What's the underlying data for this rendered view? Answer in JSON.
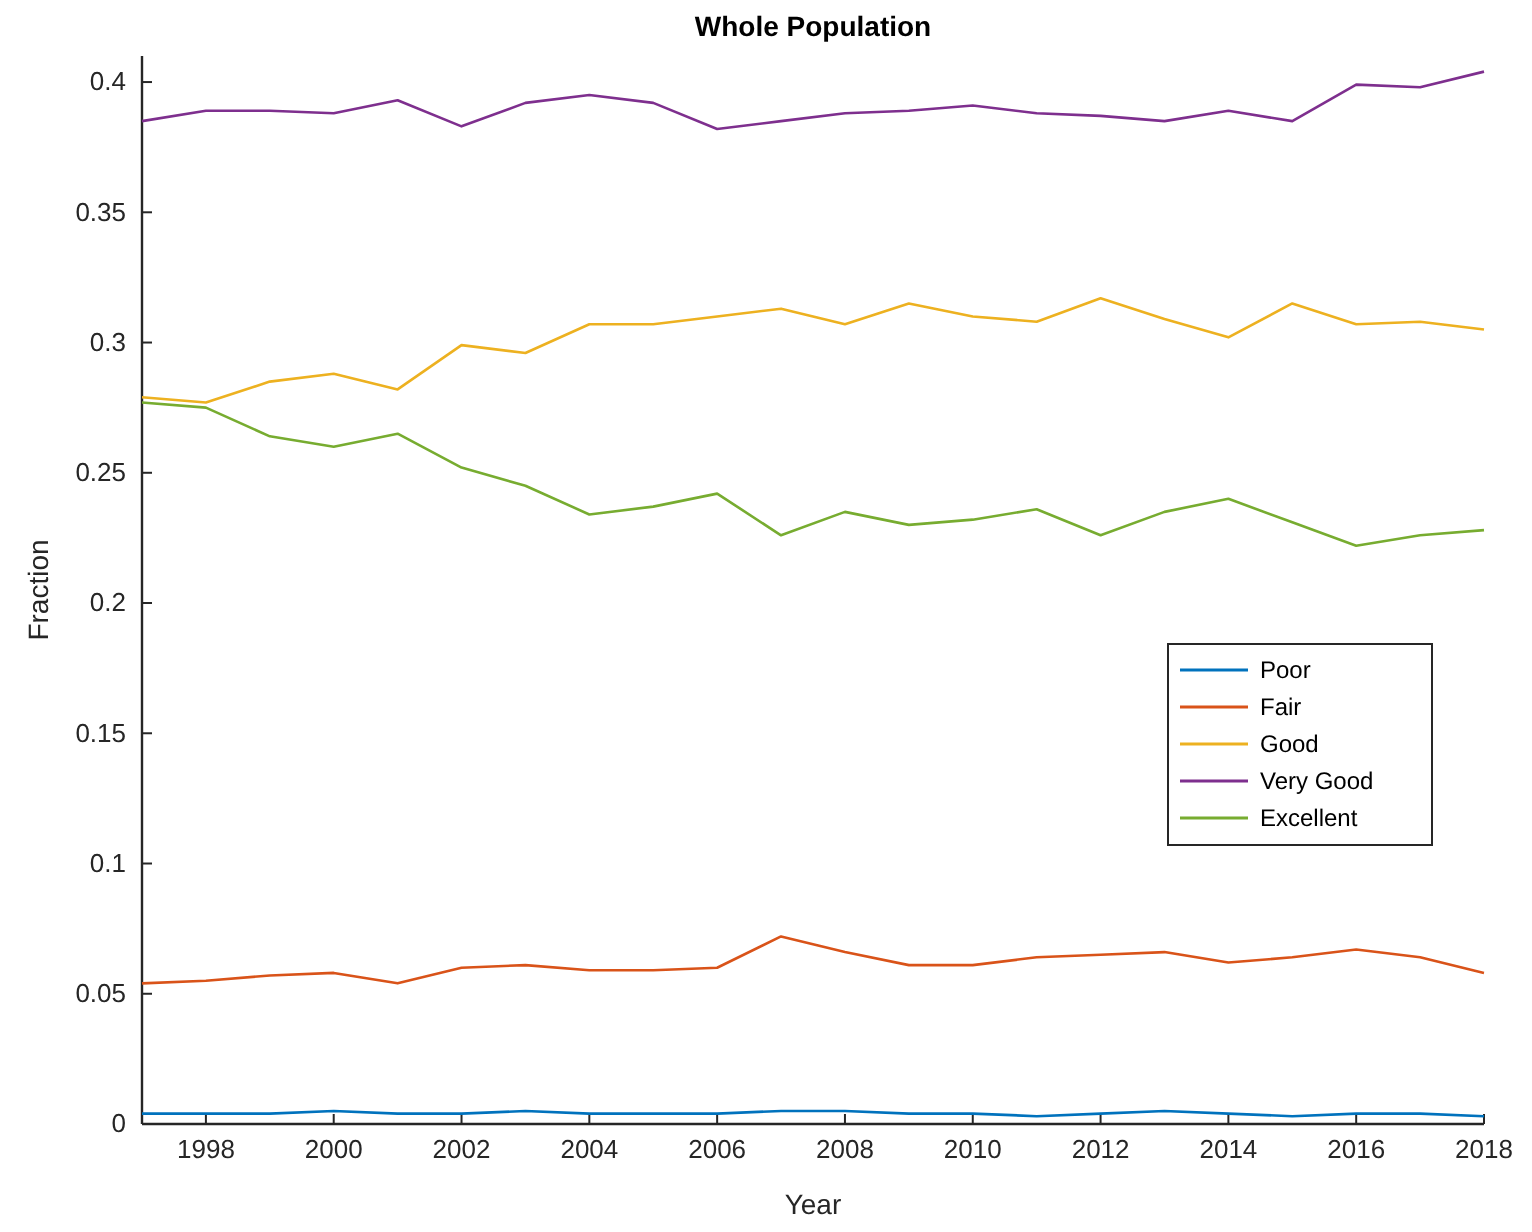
{
  "chart_data": {
    "type": "line",
    "title": "Whole Population",
    "xlabel": "Year",
    "ylabel": "Fraction",
    "x": [
      1997,
      1998,
      1999,
      2000,
      2001,
      2002,
      2003,
      2004,
      2005,
      2006,
      2007,
      2008,
      2009,
      2010,
      2011,
      2012,
      2013,
      2014,
      2015,
      2016,
      2017,
      2018
    ],
    "xlim": [
      1997,
      2018
    ],
    "xticks": [
      1998,
      2000,
      2002,
      2004,
      2006,
      2008,
      2010,
      2012,
      2014,
      2016,
      2018
    ],
    "ylim": [
      0,
      0.41
    ],
    "yticks": [
      0,
      0.05,
      0.1,
      0.15,
      0.2,
      0.25,
      0.3,
      0.35,
      0.4
    ],
    "grid": false,
    "legend": "right",
    "line_style": "solid",
    "series": [
      {
        "name": "Poor",
        "color": "#0072bd",
        "values": [
          0.004,
          0.004,
          0.004,
          0.005,
          0.004,
          0.004,
          0.005,
          0.004,
          0.004,
          0.004,
          0.005,
          0.005,
          0.004,
          0.004,
          0.003,
          0.004,
          0.005,
          0.004,
          0.003,
          0.004,
          0.004,
          0.003
        ]
      },
      {
        "name": "Fair",
        "color": "#d95319",
        "values": [
          0.054,
          0.055,
          0.057,
          0.058,
          0.054,
          0.06,
          0.061,
          0.059,
          0.059,
          0.06,
          0.072,
          0.066,
          0.061,
          0.061,
          0.064,
          0.065,
          0.066,
          0.062,
          0.064,
          0.067,
          0.064,
          0.058
        ]
      },
      {
        "name": "Good",
        "color": "#edb120",
        "values": [
          0.279,
          0.277,
          0.285,
          0.288,
          0.282,
          0.299,
          0.296,
          0.307,
          0.307,
          0.31,
          0.313,
          0.307,
          0.315,
          0.31,
          0.308,
          0.317,
          0.309,
          0.302,
          0.315,
          0.307,
          0.308,
          0.305
        ]
      },
      {
        "name": "Very Good",
        "color": "#7e2f8e",
        "values": [
          0.385,
          0.389,
          0.389,
          0.388,
          0.393,
          0.383,
          0.392,
          0.395,
          0.392,
          0.382,
          0.385,
          0.388,
          0.389,
          0.391,
          0.388,
          0.387,
          0.385,
          0.389,
          0.385,
          0.399,
          0.398,
          0.404
        ]
      },
      {
        "name": "Excellent",
        "color": "#77ac30",
        "values": [
          0.277,
          0.275,
          0.264,
          0.26,
          0.265,
          0.252,
          0.245,
          0.234,
          0.237,
          0.242,
          0.226,
          0.235,
          0.23,
          0.232,
          0.236,
          0.226,
          0.235,
          0.24,
          0.231,
          0.222,
          0.226,
          0.228
        ]
      }
    ]
  }
}
